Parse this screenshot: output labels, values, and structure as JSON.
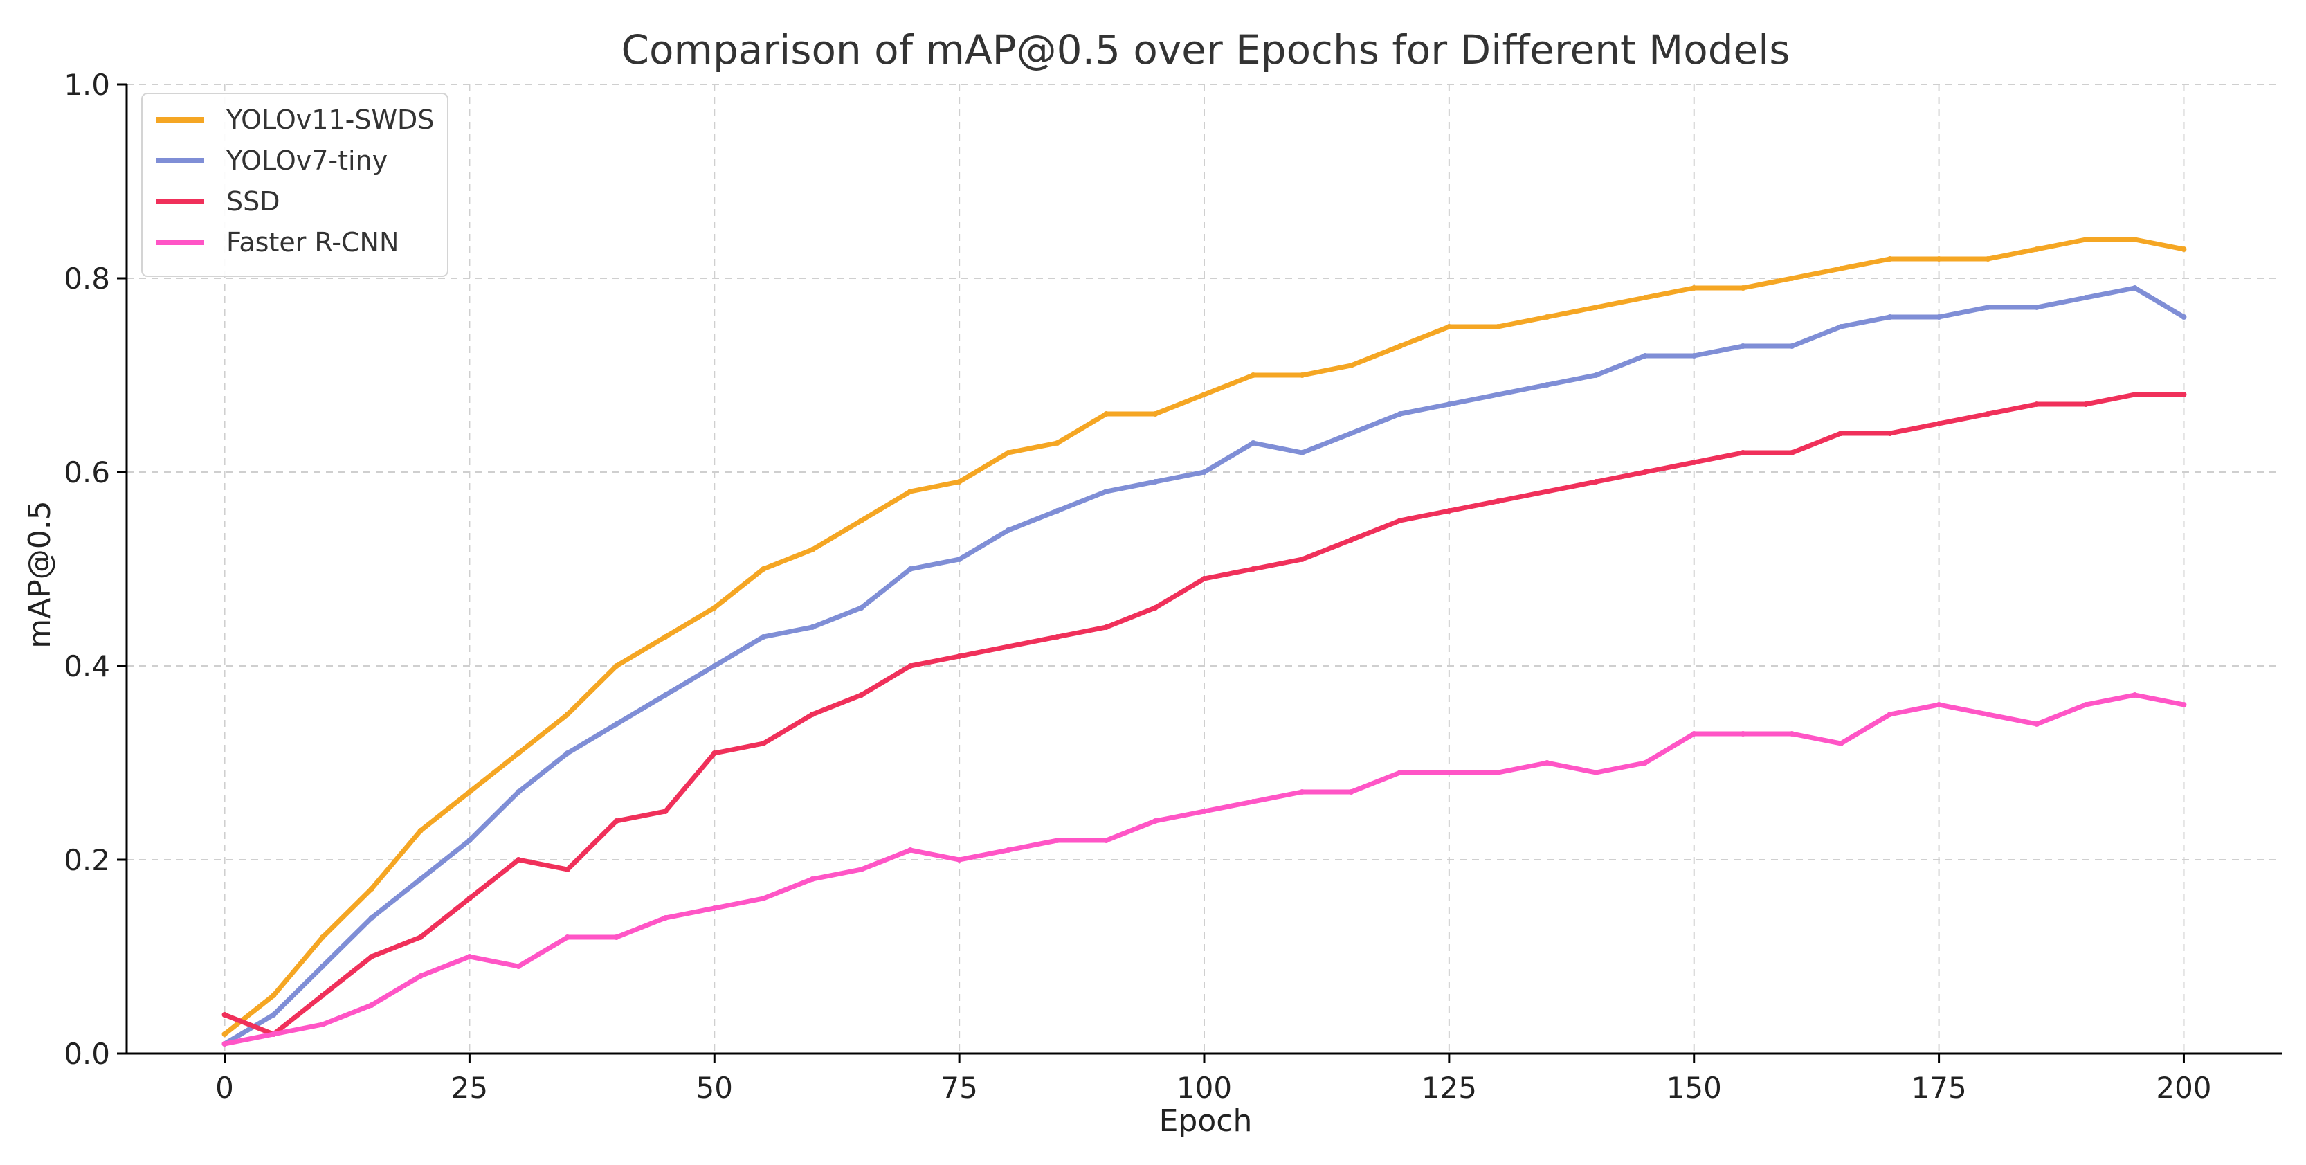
{
  "chart_data": {
    "type": "line",
    "title": "Comparison of mAP@0.5 over Epochs for Different Models",
    "xlabel": "Epoch",
    "ylabel": "mAP@0.5",
    "xlim": [
      -10,
      210
    ],
    "ylim": [
      0.0,
      1.0
    ],
    "x_ticks": [
      0,
      25,
      50,
      75,
      100,
      125,
      150,
      175,
      200
    ],
    "x_tick_labels": [
      "0",
      "25",
      "50",
      "75",
      "100",
      "125",
      "150",
      "175",
      "200"
    ],
    "y_ticks": [
      0.0,
      0.2,
      0.4,
      0.6,
      0.8,
      1.0
    ],
    "y_tick_labels": [
      "0.0",
      "0.2",
      "0.4",
      "0.6",
      "0.8",
      "1.0"
    ],
    "grid": true,
    "legend_position": "top-left",
    "x": [
      0,
      5,
      10,
      15,
      20,
      25,
      30,
      35,
      40,
      45,
      50,
      55,
      60,
      65,
      70,
      75,
      80,
      85,
      90,
      95,
      100,
      105,
      110,
      115,
      120,
      125,
      130,
      135,
      140,
      145,
      150,
      155,
      160,
      165,
      170,
      175,
      180,
      185,
      190,
      195,
      200
    ],
    "series": [
      {
        "name": "YOLOv11-SWDS",
        "color": "#F5A623",
        "values": [
          0.02,
          0.06,
          0.12,
          0.17,
          0.23,
          0.27,
          0.31,
          0.35,
          0.4,
          0.43,
          0.46,
          0.5,
          0.52,
          0.55,
          0.58,
          0.59,
          0.62,
          0.63,
          0.66,
          0.66,
          0.68,
          0.7,
          0.7,
          0.71,
          0.73,
          0.75,
          0.75,
          0.76,
          0.77,
          0.78,
          0.79,
          0.79,
          0.8,
          0.81,
          0.82,
          0.82,
          0.82,
          0.83,
          0.84,
          0.84,
          0.83
        ]
      },
      {
        "name": "YOLOv7-tiny",
        "color": "#7F8ED6",
        "values": [
          0.01,
          0.04,
          0.09,
          0.14,
          0.18,
          0.22,
          0.27,
          0.31,
          0.34,
          0.37,
          0.4,
          0.43,
          0.44,
          0.46,
          0.5,
          0.51,
          0.54,
          0.56,
          0.58,
          0.59,
          0.6,
          0.63,
          0.62,
          0.64,
          0.66,
          0.67,
          0.68,
          0.69,
          0.7,
          0.72,
          0.72,
          0.73,
          0.73,
          0.75,
          0.76,
          0.76,
          0.77,
          0.77,
          0.78,
          0.79,
          0.76
        ]
      },
      {
        "name": "SSD",
        "color": "#F0305A",
        "values": [
          0.04,
          0.02,
          0.06,
          0.1,
          0.12,
          0.16,
          0.2,
          0.19,
          0.24,
          0.25,
          0.31,
          0.32,
          0.35,
          0.37,
          0.4,
          0.41,
          0.42,
          0.43,
          0.44,
          0.46,
          0.49,
          0.5,
          0.51,
          0.53,
          0.55,
          0.56,
          0.57,
          0.58,
          0.59,
          0.6,
          0.61,
          0.62,
          0.62,
          0.64,
          0.64,
          0.65,
          0.66,
          0.67,
          0.67,
          0.68,
          0.68
        ]
      },
      {
        "name": "Faster R-CNN",
        "color": "#FF55C6",
        "values": [
          0.01,
          0.02,
          0.03,
          0.05,
          0.08,
          0.1,
          0.09,
          0.12,
          0.12,
          0.14,
          0.15,
          0.16,
          0.18,
          0.19,
          0.21,
          0.2,
          0.21,
          0.22,
          0.22,
          0.24,
          0.25,
          0.26,
          0.27,
          0.27,
          0.29,
          0.29,
          0.29,
          0.3,
          0.29,
          0.3,
          0.33,
          0.33,
          0.33,
          0.32,
          0.35,
          0.36,
          0.35,
          0.34,
          0.36,
          0.37,
          0.36
        ]
      }
    ]
  }
}
